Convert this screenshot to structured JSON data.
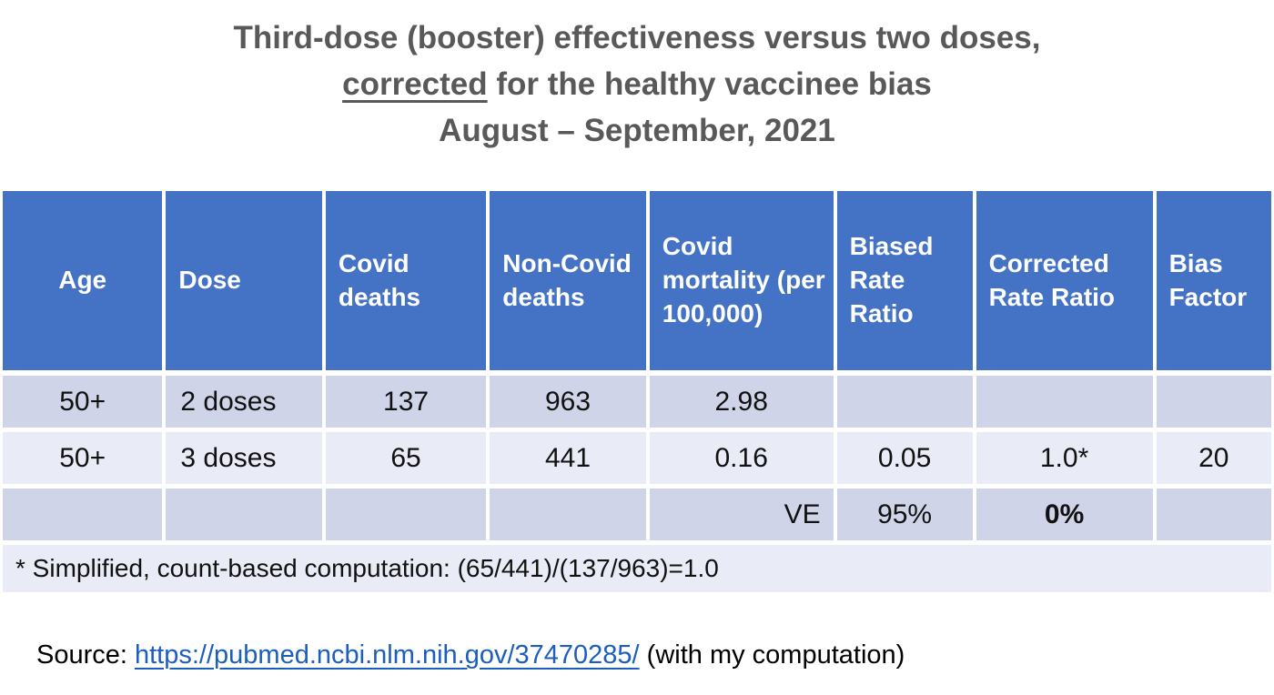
{
  "title": {
    "line1": "Third-dose (booster) effectiveness versus two doses,",
    "line2_underlined": "corrected",
    "line2_rest": " for the healthy vaccinee bias",
    "line3": "August – September, 2021"
  },
  "table": {
    "columns": [
      {
        "label": "Age"
      },
      {
        "label": "Dose"
      },
      {
        "label": "Covid deaths"
      },
      {
        "label": "Non-Covid deaths"
      },
      {
        "label": "Covid mortality (per 100,000)"
      },
      {
        "label": "Biased Rate Ratio"
      },
      {
        "label": "Corrected Rate Ratio"
      },
      {
        "label": "Bias Factor"
      }
    ],
    "rows": [
      {
        "cells": [
          "50+",
          "2 doses",
          "137",
          "963",
          "2.98",
          "",
          "",
          ""
        ]
      },
      {
        "cells": [
          "50+",
          "3 doses",
          "65",
          "441",
          "0.16",
          "0.05",
          "1.0*",
          "20"
        ]
      },
      {
        "cells": [
          "",
          "",
          "",
          "",
          "VE",
          "95%",
          "0%",
          ""
        ]
      }
    ],
    "footnote": "* Simplified, count-based computation: (65/441)/(137/963)=1.0"
  },
  "source": {
    "prefix": "Source: ",
    "link": "https://pubmed.ncbi.nlm.nih.gov/37470285/",
    "suffix": " (with my computation)"
  },
  "colors": {
    "header_bg": "#4472C4",
    "band_dark": "#CFD4E9",
    "band_light": "#E9EBF6",
    "title_text": "#595959",
    "link": "#1B5EBE"
  }
}
